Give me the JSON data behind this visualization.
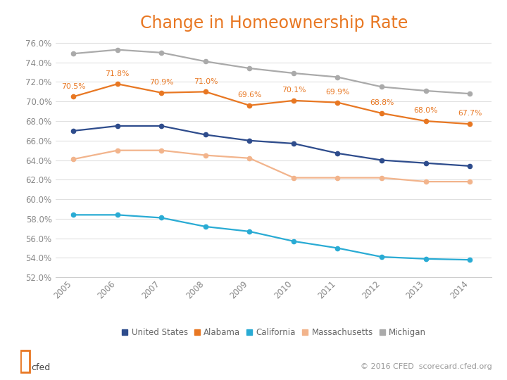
{
  "title": "Change in Homeownership Rate",
  "title_color": "#E87722",
  "years": [
    2005,
    2006,
    2007,
    2008,
    2009,
    2010,
    2011,
    2012,
    2013,
    2014
  ],
  "series": {
    "United States": {
      "values": [
        67.0,
        67.5,
        67.5,
        66.6,
        66.0,
        65.7,
        64.7,
        64.0,
        63.7,
        63.4
      ],
      "color": "#2E4C8C",
      "annotate": false
    },
    "Alabama": {
      "values": [
        70.5,
        71.8,
        70.9,
        71.0,
        69.6,
        70.1,
        69.9,
        68.8,
        68.0,
        67.7
      ],
      "color": "#E87722",
      "annotate": true,
      "labels": [
        "70.5%",
        "71.8%",
        "70.9%",
        "71.0%",
        "69.6%",
        "70.1%",
        "69.9%",
        "68.8%",
        "68.0%",
        "67.7%"
      ]
    },
    "California": {
      "values": [
        58.4,
        58.4,
        58.1,
        57.2,
        56.7,
        55.7,
        55.0,
        54.1,
        53.9,
        53.8
      ],
      "color": "#29ABD4",
      "annotate": false
    },
    "Massachusetts": {
      "values": [
        64.1,
        65.0,
        65.0,
        64.5,
        64.2,
        62.2,
        62.2,
        62.2,
        61.8,
        61.8
      ],
      "color": "#F2B48C",
      "annotate": false
    },
    "Michigan": {
      "values": [
        74.9,
        75.3,
        75.0,
        74.1,
        73.4,
        72.9,
        72.5,
        71.5,
        71.1,
        70.8
      ],
      "color": "#AAAAAA",
      "annotate": false
    }
  },
  "series_order": [
    "Michigan",
    "Alabama",
    "United States",
    "Massachusetts",
    "California"
  ],
  "legend_order": [
    "United States",
    "Alabama",
    "California",
    "Massachusetts",
    "Michigan"
  ],
  "ylim": [
    52.0,
    76.5
  ],
  "yticks": [
    52.0,
    54.0,
    56.0,
    58.0,
    60.0,
    62.0,
    64.0,
    66.0,
    68.0,
    70.0,
    72.0,
    74.0,
    76.0
  ],
  "background_color": "#FFFFFF",
  "tick_color": "#888888",
  "grid_color": "#E0E0E0",
  "footer_text": "© 2016 CFED  scorecard.cfed.org",
  "logo_color": "#E87722",
  "logo_text": "cfed"
}
